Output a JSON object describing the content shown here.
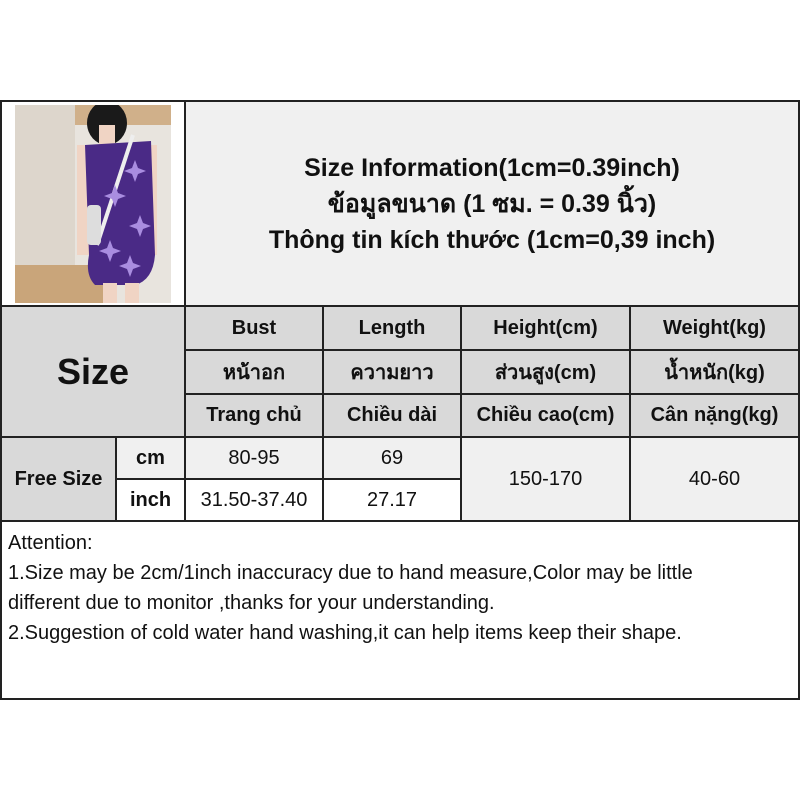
{
  "title_lines": [
    "Size Information(1cm=0.39inch)",
    "ข้อมูลขนาด (1 ซม. = 0.39 นิ้ว)",
    "Thông tin kích thước (1cm=0,39 inch)"
  ],
  "size_label": "Size",
  "headers": [
    {
      "en": "Bust",
      "th": "หน้าอก",
      "vi": "Trang chủ"
    },
    {
      "en": "Length",
      "th": "ความยาว",
      "vi": "Chiều dài"
    },
    {
      "en": "Height(cm)",
      "th": "ส่วนสูง(cm)",
      "vi": "Chiều cao(cm)"
    },
    {
      "en": "Weight(kg)",
      "th": "น้ำหนัก(kg)",
      "vi": "Cân nặng(kg)"
    }
  ],
  "row": {
    "size": "Free Size",
    "units": [
      "cm",
      "inch"
    ],
    "bust": [
      "80-95",
      "31.50-37.40"
    ],
    "length": [
      "69",
      "27.17"
    ],
    "height": "150-170",
    "weight": "40-60"
  },
  "attention": {
    "heading": "Attention:",
    "lines": [
      "1.Size may be 2cm/1inch inaccuracy due to hand measure,Color may be little",
      "different due to monitor ,thanks for your understanding.",
      "2.Suggestion of cold water hand washing,it can help items keep their shape."
    ]
  },
  "colors": {
    "header_gray": "#d9d9d9",
    "light_gray": "#f0f0f0",
    "dress_purple": "#4a2a86"
  }
}
